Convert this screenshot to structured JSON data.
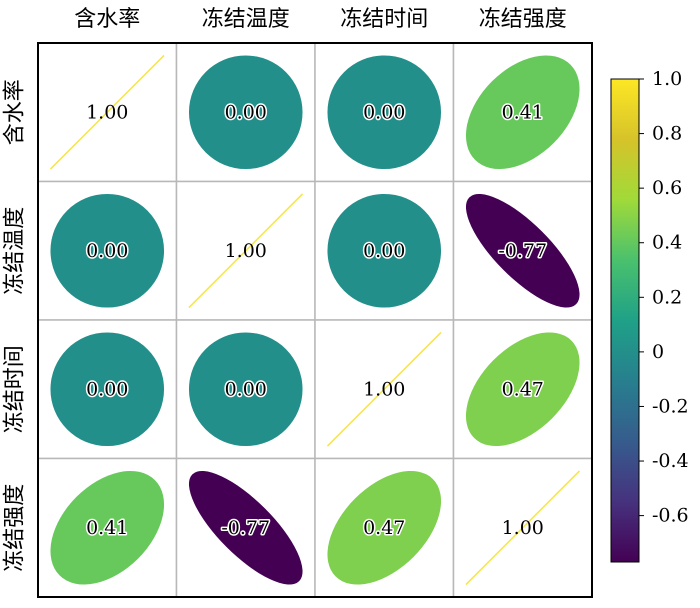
{
  "chart_data": {
    "type": "heatmap",
    "variables": [
      "含水率",
      "冻结温度",
      "冻结时间",
      "冻结强度"
    ],
    "matrix": [
      [
        1.0,
        0.0,
        0.0,
        0.41
      ],
      [
        0.0,
        1.0,
        0.0,
        -0.77
      ],
      [
        0.0,
        0.0,
        1.0,
        0.47
      ],
      [
        0.41,
        -0.77,
        0.47,
        1.0
      ]
    ],
    "value_format": "2 decimals",
    "colorbar": {
      "range": [
        -0.77,
        1.0
      ],
      "ticks": [
        1.0,
        0.8,
        0.6,
        0.4,
        0.2,
        0,
        -0.2,
        -0.4,
        -0.6
      ],
      "tick_labels": [
        "1.0",
        "0.8",
        "0.6",
        "0.4",
        "0.2",
        "0",
        "-0.2",
        "-0.4",
        "-0.6"
      ],
      "colormap": "viridis",
      "position": "right"
    },
    "grid": true,
    "diagonal_style": "line",
    "offdiagonal_style": "ellipse"
  }
}
